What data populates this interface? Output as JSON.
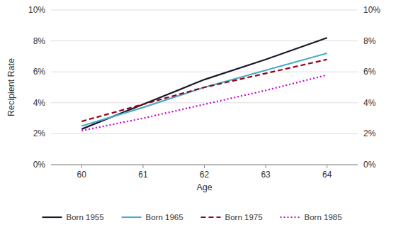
{
  "chart_data": {
    "type": "line",
    "xlabel": "Age",
    "ylabel": "Recipient Rate",
    "x": [
      60,
      61,
      62,
      63,
      64
    ],
    "series": [
      {
        "name": "Born 1955",
        "color": "#1a1a2e",
        "line_style": "solid",
        "values": [
          2.3,
          3.9,
          5.5,
          6.8,
          8.2
        ]
      },
      {
        "name": "Born 1965",
        "color": "#4bacc6",
        "line_style": "solid",
        "values": [
          2.5,
          3.7,
          5.0,
          6.1,
          7.2
        ]
      },
      {
        "name": "Born 1975",
        "color": "#960018",
        "line_style": "dashed",
        "values": [
          2.8,
          3.9,
          5.0,
          5.9,
          6.8
        ]
      },
      {
        "name": "Born 1985",
        "color": "#cc00cc",
        "line_style": "dotted",
        "values": [
          2.2,
          3.0,
          3.9,
          4.8,
          5.8
        ]
      }
    ],
    "xlim": [
      59.5,
      64.5
    ],
    "xticks": [
      60,
      61,
      62,
      63,
      64
    ],
    "ylim": [
      0,
      10
    ],
    "yticks": [
      {
        "value": 0,
        "label": "0%"
      },
      {
        "value": 2,
        "label": "2%"
      },
      {
        "value": 4,
        "label": "4%"
      },
      {
        "value": 6,
        "label": "6%"
      },
      {
        "value": 8,
        "label": "8%"
      },
      {
        "value": 10,
        "label": "10%"
      }
    ],
    "y2lim": [
      0,
      10
    ],
    "y2ticks": [
      {
        "value": 0,
        "label": "0%"
      },
      {
        "value": 2,
        "label": "2%"
      },
      {
        "value": 4,
        "label": "4%"
      },
      {
        "value": 6,
        "label": "6%"
      },
      {
        "value": 8,
        "label": "8%"
      },
      {
        "value": 10,
        "label": "10%"
      }
    ],
    "grid": true,
    "legend": "bottom"
  }
}
